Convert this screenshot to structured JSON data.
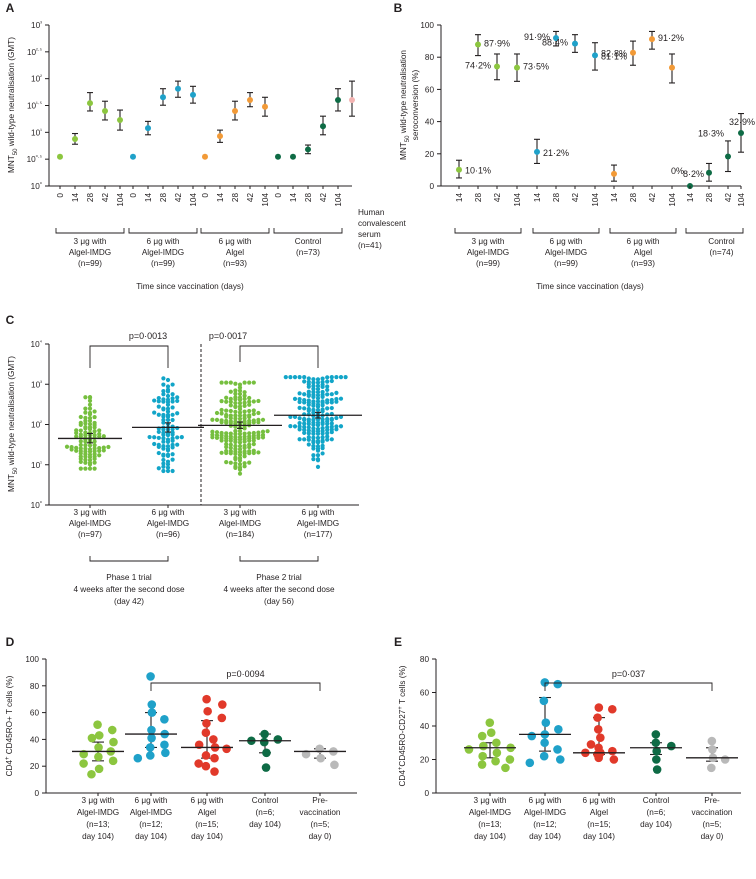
{
  "colors": {
    "light_green": "#8cc63f",
    "blue": "#1fa1c9",
    "orange": "#f29a37",
    "dark_green": "#0e6b45",
    "pink": "#f3b3b1",
    "red": "#e1392a",
    "grey": "#b9b9b9",
    "green_swarm": "#76bf3f",
    "blue_swarm": "#12a5c8"
  },
  "chart_data": [
    {
      "id": "A",
      "panel_label": "A",
      "type": "scatter",
      "ylabel": "MNT50 wild-type neutralisation (GMT)",
      "yscale": "log10",
      "ylim": [
        1,
        1000
      ],
      "ytick_labels": [
        "10⁰",
        "10⁰·⁵",
        "10¹",
        "10¹·⁵",
        "10²",
        "10²·⁵",
        "10³"
      ],
      "xlabel": "Time since vaccination (days)",
      "groups": [
        {
          "name": "3 μg with Algel-IMDG (n=99)",
          "lines": [
            "3 μg with",
            "Algel-IMDG",
            "(n=99)"
          ],
          "color": "#8cc63f",
          "days": [
            "0",
            "14",
            "28",
            "42",
            "104"
          ],
          "gmt": [
            3.5,
            7.5,
            35,
            25,
            17
          ],
          "ci_low": [
            3.5,
            6,
            25,
            17,
            11
          ],
          "ci_high": [
            3.5,
            9.5,
            55,
            38,
            26
          ]
        },
        {
          "name": "6 μg with Algel-IMDG (n=99)",
          "lines": [
            "6 μg with",
            "Algel-IMDG",
            "(n=99)"
          ],
          "color": "#1fa1c9",
          "days": [
            "0",
            "14",
            "28",
            "42",
            "104"
          ],
          "gmt": [
            3.5,
            12,
            45,
            65,
            50
          ],
          "ci_low": [
            3.5,
            9,
            32,
            45,
            35
          ],
          "ci_high": [
            3.5,
            16,
            65,
            90,
            72
          ]
        },
        {
          "name": "6 μg with Algel (n=93)",
          "lines": [
            "6 μg with",
            "Algel",
            "(n=93)"
          ],
          "color": "#f29a37",
          "days": [
            "0",
            "14",
            "28",
            "42",
            "104"
          ],
          "gmt": [
            3.5,
            8.5,
            25,
            40,
            30
          ],
          "ci_low": [
            3.5,
            6.5,
            17,
            30,
            20
          ],
          "ci_high": [
            3.5,
            11,
            38,
            55,
            45
          ]
        },
        {
          "name": "Control (n=73)",
          "lines": [
            "Control",
            "(n=73)"
          ],
          "color": "#0e6b45",
          "days": [
            "0",
            "14",
            "28",
            "42",
            "104"
          ],
          "gmt": [
            3.5,
            3.5,
            4.8,
            13,
            40
          ],
          "ci_low": [
            3.5,
            3.5,
            4,
            9,
            25
          ],
          "ci_high": [
            3.5,
            3.5,
            5.8,
            20,
            65
          ]
        },
        {
          "name": "Human convalescent serum (n=41)",
          "lines": [
            "Human",
            "convalescent",
            "serum",
            "(n=41)"
          ],
          "color": "#f3b3b1",
          "days": [],
          "gmt": [
            40
          ],
          "ci_low": [
            20
          ],
          "ci_high": [
            90
          ]
        }
      ]
    },
    {
      "id": "B",
      "panel_label": "B",
      "type": "scatter",
      "ylabel": "MNT50 wild-type neutralisation seroconversion (%)",
      "ylim": [
        0,
        100
      ],
      "yticks": [
        "0",
        "20",
        "40",
        "60",
        "80",
        "100"
      ],
      "xlabel": "Time since vaccination (days)",
      "groups": [
        {
          "name": "3 μg with Algel-IMDG (n=99)",
          "lines": [
            "3 μg with",
            "Algel-IMDG",
            "(n=99)"
          ],
          "color": "#8cc63f",
          "days": [
            "14",
            "28",
            "42",
            "104"
          ],
          "values": [
            10.1,
            87.9,
            74.2,
            73.5
          ],
          "ci_low": [
            5,
            81,
            66,
            65
          ],
          "ci_high": [
            16,
            94,
            82,
            82
          ],
          "labels": [
            "10·1%",
            "87·9%",
            "74·2%",
            "73·5%"
          ]
        },
        {
          "name": "6 μg with Algel-IMDG (n=99)",
          "lines": [
            "6 μg with",
            "Algel-IMDG",
            "(n=99)"
          ],
          "color": "#1fa1c9",
          "days": [
            "14",
            "28",
            "42",
            "104"
          ],
          "values": [
            21.2,
            91.9,
            88.4,
            81.1
          ],
          "ci_low": [
            14,
            87,
            83,
            72
          ],
          "ci_high": [
            29,
            96,
            94,
            89
          ],
          "labels": [
            "21·2%",
            "91·9%",
            "88·4%",
            "81·1%"
          ]
        },
        {
          "name": "6 μg with Algel (n=93)",
          "lines": [
            "6 μg with",
            "Algel",
            "(n=93)"
          ],
          "color": "#f29a37",
          "days": [
            "14",
            "28",
            "42",
            "104"
          ],
          "values": [
            7.5,
            82.8,
            91.2,
            73.5
          ],
          "ci_low": [
            3,
            75,
            85,
            64
          ],
          "ci_high": [
            13,
            90,
            96,
            82
          ],
          "labels": [
            "",
            "82·8%",
            "91·2%",
            ""
          ]
        },
        {
          "name": "Control (n=74)",
          "lines": [
            "Control",
            "(n=74)"
          ],
          "color": "#0e6b45",
          "days": [
            "14",
            "28",
            "42",
            "104"
          ],
          "values": [
            0,
            8.2,
            18.3,
            32.9
          ],
          "ci_low": [
            0,
            3,
            9,
            21
          ],
          "ci_high": [
            0,
            14,
            28,
            45
          ],
          "labels": [
            "0%",
            "8·2%",
            "18·3%",
            "32·9%"
          ]
        }
      ]
    },
    {
      "id": "C",
      "panel_label": "C",
      "type": "scatter",
      "ylabel": "MNT50 wild-type neutralisation (GMT)",
      "yscale": "log10",
      "ylim": [
        1,
        10000
      ],
      "ytick_labels": [
        "10⁰",
        "10¹",
        "10²",
        "10³",
        "10⁴"
      ],
      "groups": [
        {
          "lines": [
            "3 μg with",
            "Algel-IMDG",
            "(n=97)"
          ],
          "n": 97,
          "gmt": 45,
          "ci_low": 35,
          "ci_high": 60,
          "color": "#76bf3f",
          "min": 8,
          "max": 900
        },
        {
          "lines": [
            "6 μg with",
            "Algel-IMDG",
            "(n=96)"
          ],
          "n": 96,
          "gmt": 85,
          "ci_low": 65,
          "ci_high": 110,
          "color": "#12a5c8",
          "min": 7,
          "max": 1400
        },
        {
          "lines": [
            "3 μg with",
            "Algel-IMDG",
            "(n=184)"
          ],
          "n": 184,
          "gmt": 95,
          "ci_low": 80,
          "ci_high": 115,
          "color": "#76bf3f",
          "min": 6,
          "max": 1100
        },
        {
          "lines": [
            "6 μg with",
            "Algel-IMDG",
            "(n=177)"
          ],
          "n": 177,
          "gmt": 170,
          "ci_low": 145,
          "ci_high": 200,
          "color": "#12a5c8",
          "min": 8,
          "max": 1500
        }
      ],
      "comparisons": [
        {
          "label": "p=0·0013",
          "from": 0,
          "to": 1
        },
        {
          "label": "p=0·0017",
          "from": 0,
          "to": 3
        }
      ],
      "phases": [
        {
          "lines": [
            "Phase 1 trial",
            "4 weeks after the second dose",
            "(day 42)"
          ]
        },
        {
          "lines": [
            "Phase 2 trial",
            "4 weeks after the second dose",
            "(day 56)"
          ]
        }
      ]
    },
    {
      "id": "D",
      "panel_label": "D",
      "type": "scatter",
      "ylabel": "CD4+ CD45RO+ T cells (%)",
      "ylim": [
        0,
        100
      ],
      "yticks": [
        "0",
        "20",
        "40",
        "60",
        "80",
        "100"
      ],
      "comparison": {
        "label": "p=0·0094",
        "from": 1,
        "to": 4
      },
      "groups": [
        {
          "lines": [
            "3 μg with",
            "Algel-IMDG",
            "(n=13;",
            "day 104)"
          ],
          "color": "#8cc63f",
          "median": 31,
          "q1": 24,
          "q3": 38,
          "points": [
            51,
            47,
            43,
            41,
            38,
            34,
            31,
            29,
            27,
            24,
            22,
            18,
            14
          ]
        },
        {
          "lines": [
            "6 μg with",
            "Algel-IMDG",
            "(n=12;",
            "day 104)"
          ],
          "color": "#1fa1c9",
          "median": 44,
          "q1": 34,
          "q3": 60,
          "points": [
            87,
            66,
            60,
            55,
            47,
            44,
            41,
            36,
            34,
            30,
            28,
            26
          ]
        },
        {
          "lines": [
            "6 μg with",
            "Algel",
            "(n=15;",
            "day 104)"
          ],
          "color": "#e1392a",
          "median": 34,
          "q1": 26,
          "q3": 54,
          "points": [
            70,
            66,
            61,
            56,
            52,
            45,
            40,
            36,
            34,
            33,
            28,
            26,
            22,
            20,
            16
          ]
        },
        {
          "lines": [
            "Control",
            "(n=6;",
            "day 104)"
          ],
          "color": "#0e6b45",
          "median": 39,
          "q1": 30,
          "q3": 44,
          "points": [
            44,
            40,
            39,
            38,
            30,
            19
          ]
        },
        {
          "lines": [
            "Pre-",
            "vaccination",
            "(n=5;",
            "day 0)"
          ],
          "color": "#b9b9b9",
          "median": 31,
          "q1": 26,
          "q3": 33,
          "points": [
            33,
            31,
            29,
            26,
            21
          ]
        }
      ]
    },
    {
      "id": "E",
      "panel_label": "E",
      "type": "scatter",
      "ylabel": "CD4+CD45RO-CD27+ T cells (%)",
      "ylim": [
        0,
        80
      ],
      "yticks": [
        "0",
        "20",
        "40",
        "60",
        "80"
      ],
      "comparison": {
        "label": "p=0·037",
        "from": 1,
        "to": 4
      },
      "groups": [
        {
          "lines": [
            "3 μg with",
            "Algel-IMDG",
            "(n=13;",
            "day 104)"
          ],
          "color": "#8cc63f",
          "median": 27,
          "q1": 21,
          "q3": 30,
          "points": [
            42,
            36,
            34,
            30,
            28,
            27,
            26,
            24,
            22,
            20,
            19,
            17,
            15
          ]
        },
        {
          "lines": [
            "6 μg with",
            "Algel-IMDG",
            "(n=12;",
            "day 104)"
          ],
          "color": "#1fa1c9",
          "median": 35,
          "q1": 25,
          "q3": 57,
          "points": [
            66,
            65,
            55,
            42,
            38,
            35,
            34,
            30,
            26,
            22,
            20,
            18
          ]
        },
        {
          "lines": [
            "6 μg with",
            "Algel",
            "(n=15;",
            "day 104)"
          ],
          "color": "#e1392a",
          "median": 24,
          "q1": 23,
          "q3": 45,
          "points": [
            51,
            50,
            45,
            38,
            33,
            29,
            27,
            25,
            24,
            24,
            24,
            23,
            22,
            21,
            20
          ]
        },
        {
          "lines": [
            "Control",
            "(n=6;",
            "day 104)"
          ],
          "color": "#0e6b45",
          "median": 27,
          "q1": 23,
          "q3": 30,
          "points": [
            35,
            30,
            28,
            25,
            20,
            14
          ]
        },
        {
          "lines": [
            "Pre-",
            "vaccination",
            "(n=5;",
            "day 0)"
          ],
          "color": "#b9b9b9",
          "median": 21,
          "q1": 19,
          "q3": 27,
          "points": [
            31,
            26,
            21,
            20,
            15
          ]
        }
      ]
    }
  ]
}
